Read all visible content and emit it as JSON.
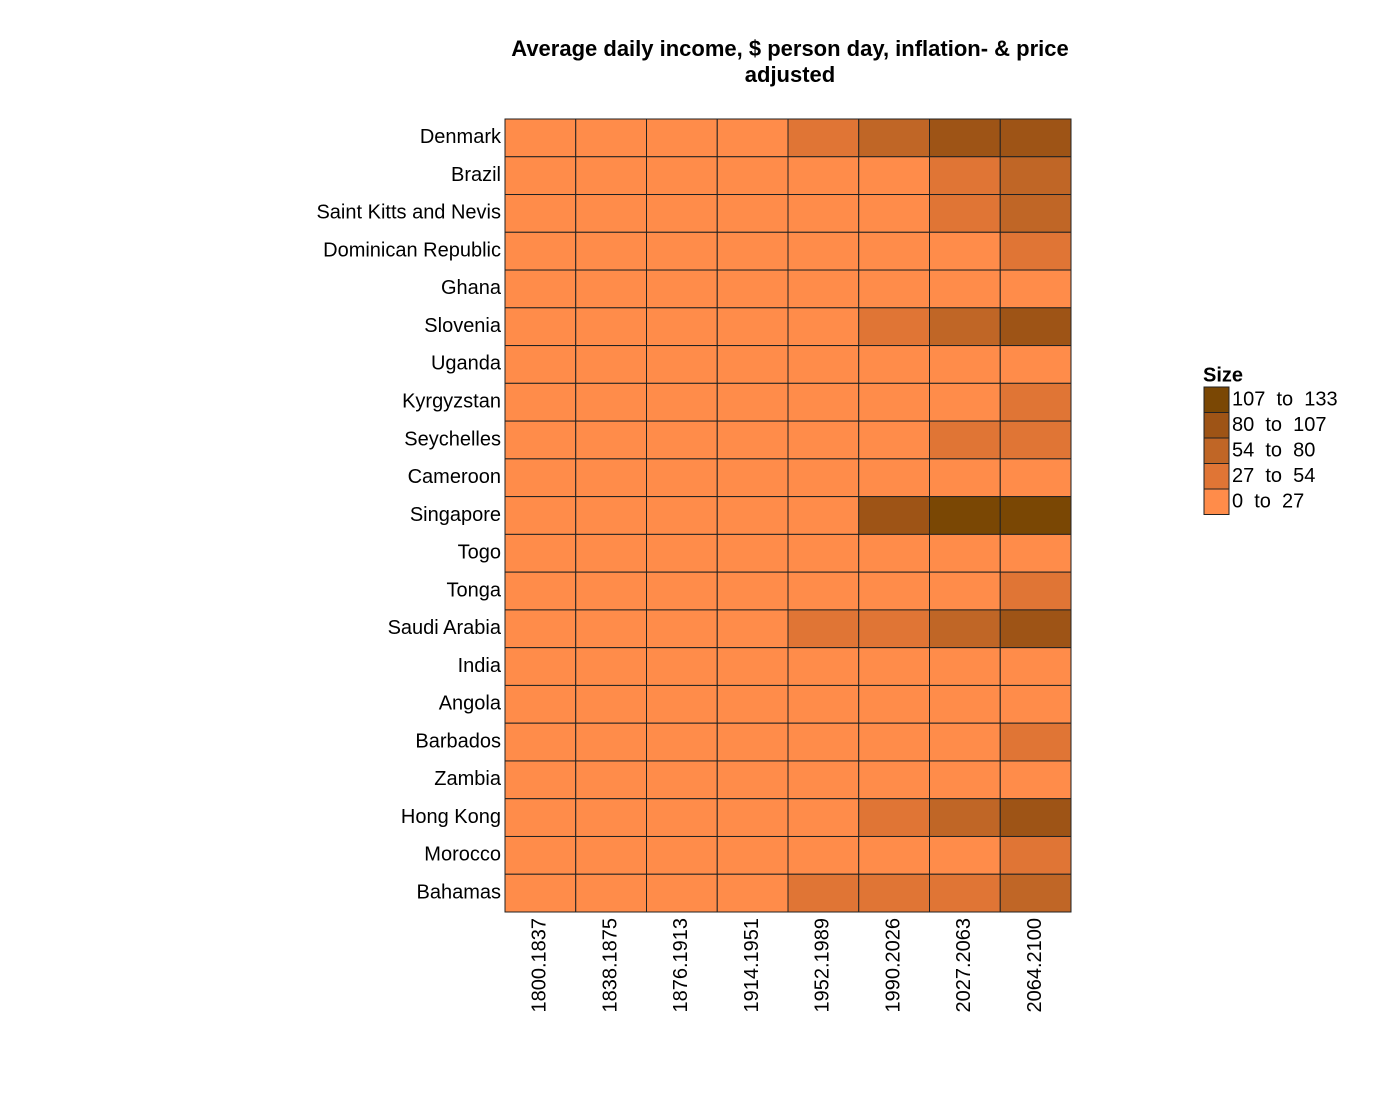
{
  "chart_data": {
    "type": "heatmap",
    "title": "Average daily income, $ person day, inflation- & price adjusted",
    "rows": [
      "Denmark",
      "Brazil",
      "Saint Kitts and Nevis",
      "Dominican Republic",
      "Ghana",
      "Slovenia",
      "Uganda",
      "Kyrgyzstan",
      "Seychelles",
      "Cameroon",
      "Singapore",
      "Togo",
      "Tonga",
      "Saudi Arabia",
      "India",
      "Angola",
      "Barbados",
      "Zambia",
      "Hong Kong",
      "Morocco",
      "Bahamas"
    ],
    "columns": [
      "1800.1837",
      "1838.1875",
      "1876.1913",
      "1914.1951",
      "1952.1989",
      "1990.2026",
      "2027.2063",
      "2064.2100"
    ],
    "values": [
      [
        4,
        6,
        9,
        15,
        40,
        68,
        95,
        105
      ],
      [
        2,
        3,
        4,
        6,
        12,
        20,
        40,
        62
      ],
      [
        2,
        2,
        3,
        4,
        10,
        24,
        45,
        70
      ],
      [
        2,
        2,
        3,
        4,
        6,
        14,
        25,
        42
      ],
      [
        1,
        2,
        2,
        3,
        4,
        5,
        10,
        20
      ],
      [
        3,
        4,
        6,
        8,
        15,
        40,
        70,
        95
      ],
      [
        1,
        1,
        1,
        2,
        2,
        3,
        6,
        14
      ],
      [
        1,
        2,
        2,
        3,
        6,
        6,
        15,
        30
      ],
      [
        2,
        2,
        3,
        4,
        8,
        22,
        40,
        50
      ],
      [
        1,
        1,
        2,
        2,
        4,
        5,
        9,
        18
      ],
      [
        3,
        4,
        5,
        6,
        14,
        90,
        125,
        130
      ],
      [
        1,
        1,
        1,
        2,
        3,
        3,
        5,
        10
      ],
      [
        1,
        2,
        2,
        3,
        5,
        10,
        18,
        30
      ],
      [
        2,
        2,
        3,
        4,
        45,
        50,
        70,
        100
      ],
      [
        1,
        1,
        1,
        2,
        2,
        6,
        18,
        26
      ],
      [
        1,
        1,
        2,
        2,
        5,
        10,
        15,
        22
      ],
      [
        2,
        2,
        3,
        4,
        8,
        24,
        26,
        40
      ],
      [
        1,
        1,
        1,
        2,
        4,
        5,
        8,
        15
      ],
      [
        2,
        3,
        3,
        4,
        12,
        45,
        75,
        100
      ],
      [
        1,
        2,
        2,
        3,
        5,
        10,
        20,
        35
      ],
      [
        3,
        4,
        5,
        6,
        30,
        40,
        45,
        60
      ]
    ],
    "legend_title": "Size",
    "legend": [
      {
        "label": "107  to  133",
        "range": [
          107,
          133
        ],
        "color": "#7a4704"
      },
      {
        "label": "80  to  107",
        "range": [
          80,
          107
        ],
        "color": "#9e5416"
      },
      {
        "label": "54  to  80",
        "range": [
          54,
          80
        ],
        "color": "#c06626"
      },
      {
        "label": "27  to  54",
        "range": [
          27,
          54
        ],
        "color": "#e07535"
      },
      {
        "label": "0  to  27",
        "range": [
          0,
          27
        ],
        "color": "#ff8c4a"
      }
    ]
  }
}
